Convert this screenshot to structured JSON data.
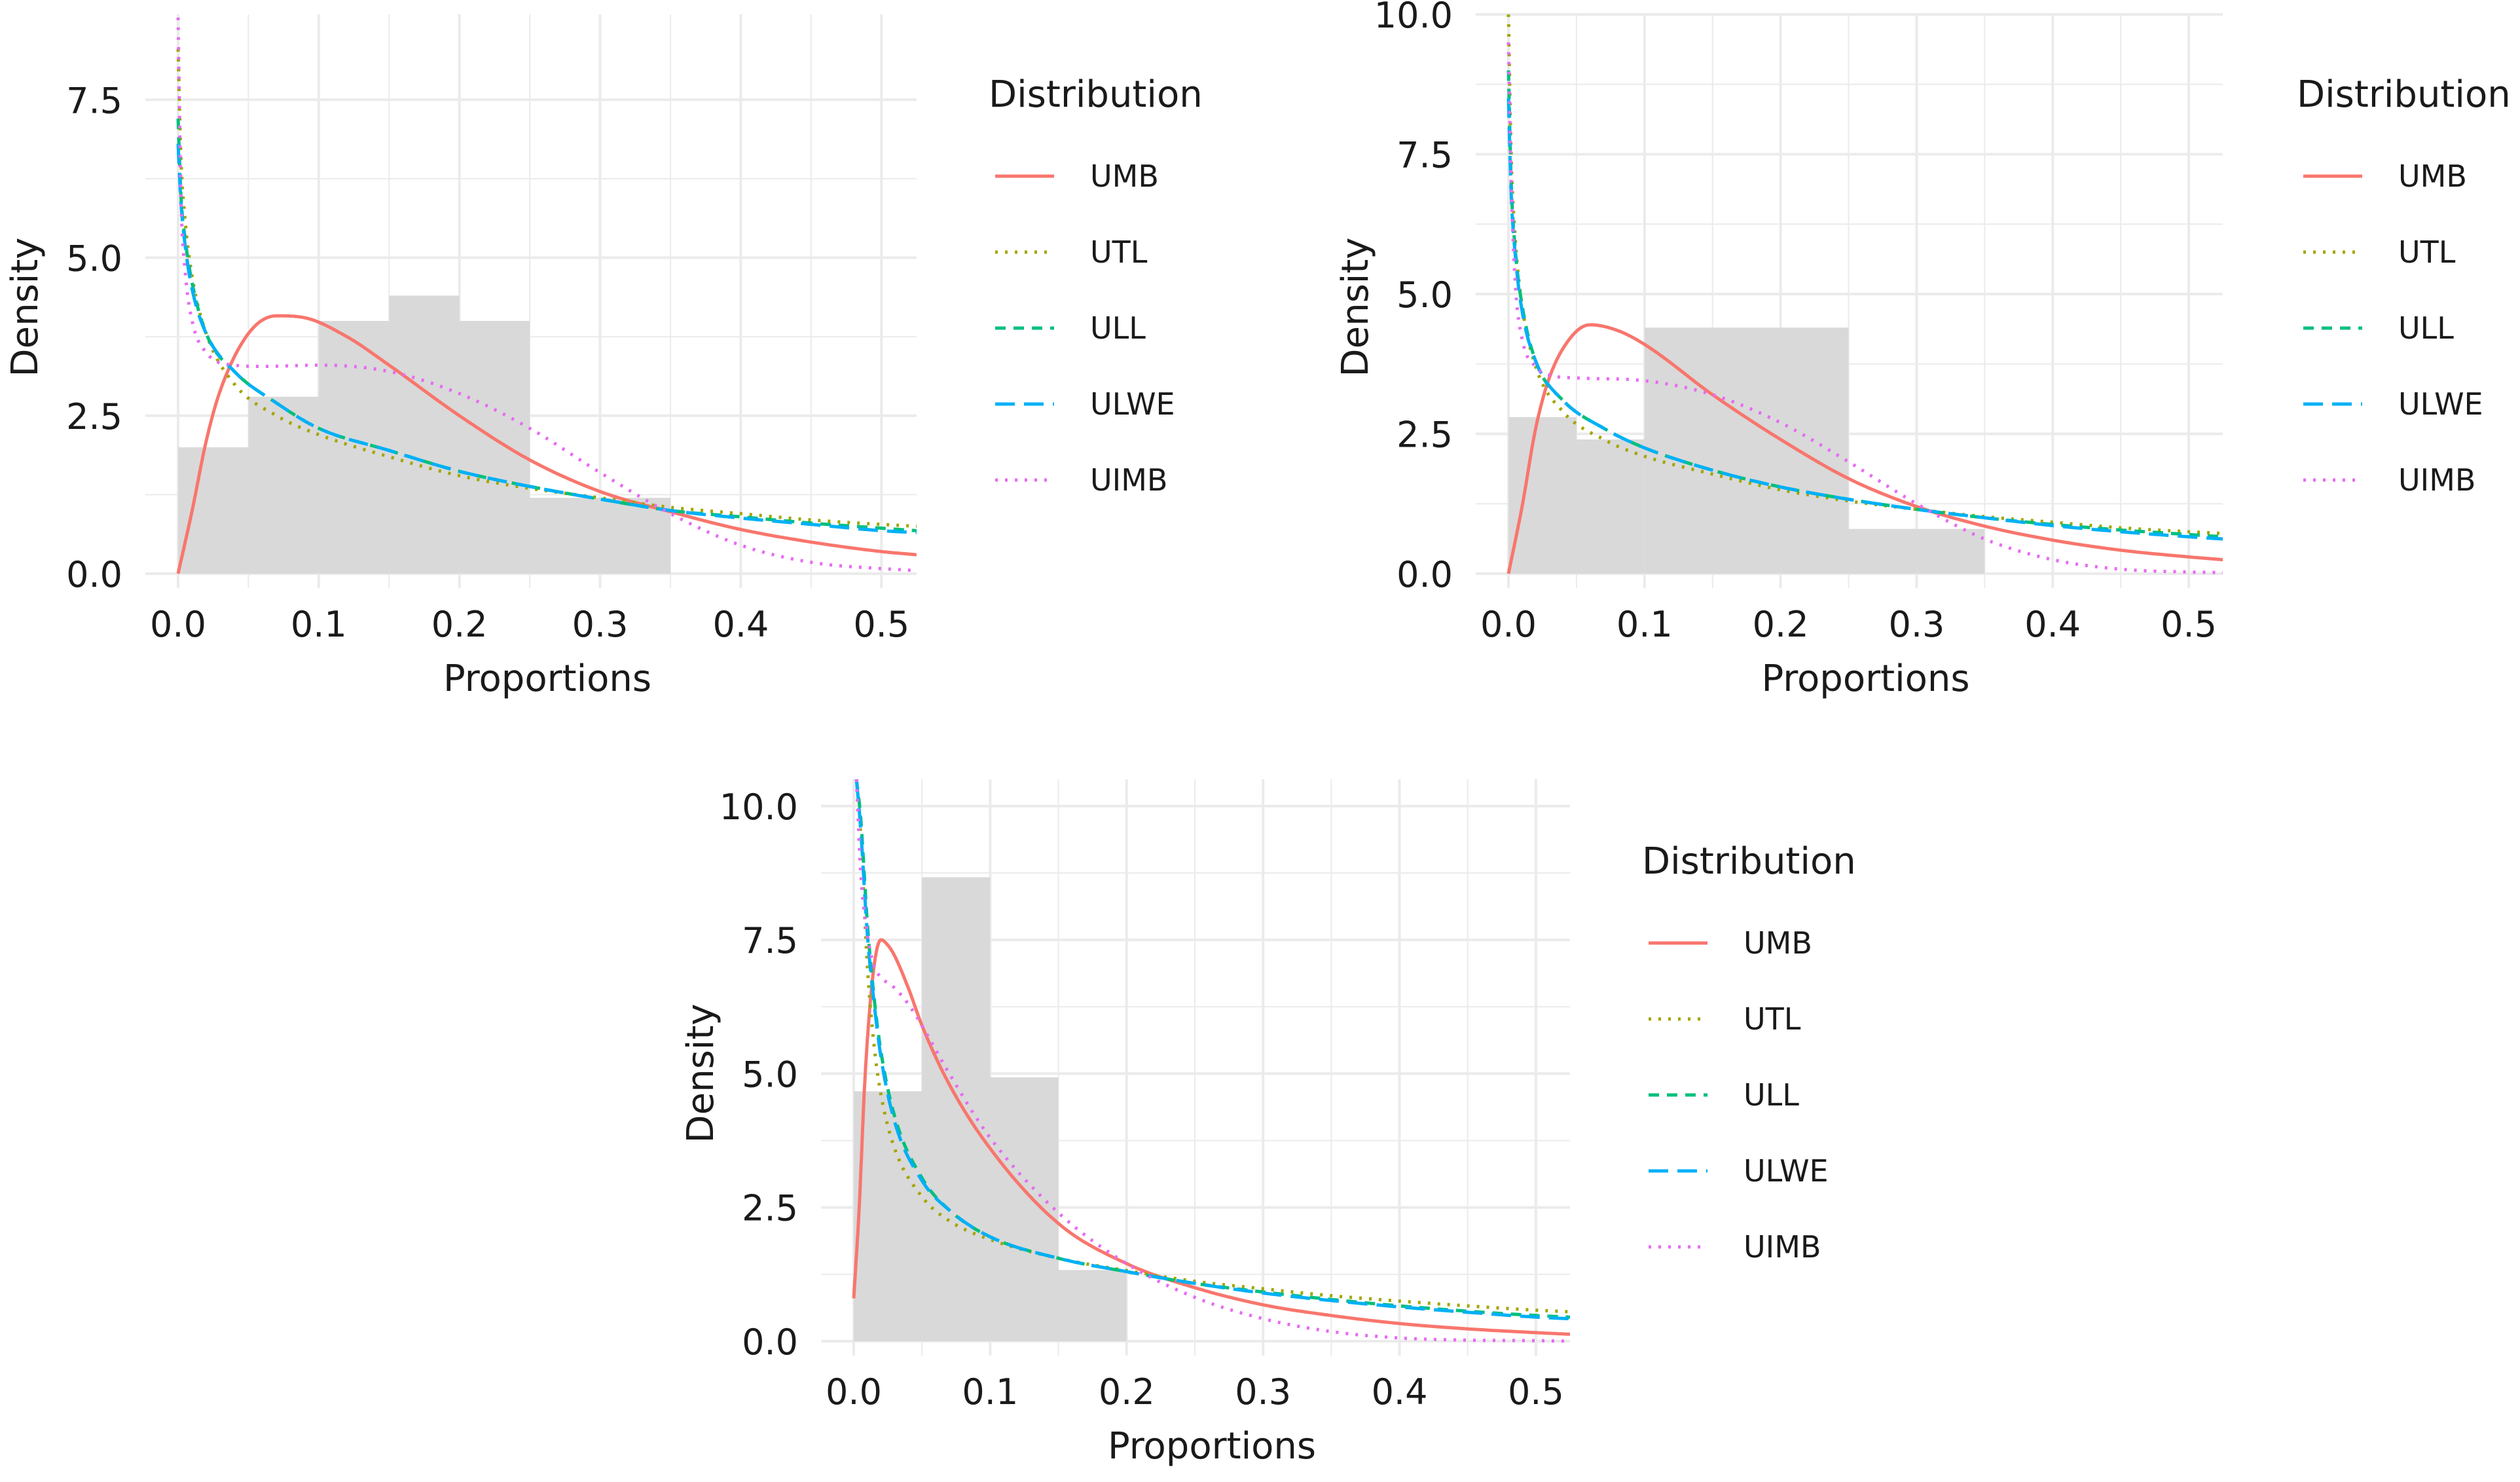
{
  "chart_data": [
    {
      "type": "histogram-density",
      "xlabel": "Proportions",
      "ylabel": "Density",
      "xlim": [
        0.0,
        0.525
      ],
      "ylim": [
        0.0,
        8.85
      ],
      "xticks": [
        0.0,
        0.1,
        0.2,
        0.3,
        0.4,
        0.5
      ],
      "xtick_labels": [
        "0.0",
        "0.1",
        "0.2",
        "0.3",
        "0.4",
        "0.5"
      ],
      "yticks": [
        0.0,
        2.5,
        5.0,
        7.5
      ],
      "ytick_labels": [
        "0.0",
        "2.5",
        "5.0",
        "7.5"
      ],
      "histogram": {
        "bin_width": 0.05,
        "bin_starts": [
          0.0,
          0.05,
          0.1,
          0.15,
          0.2,
          0.25,
          0.3
        ],
        "values": [
          2.0,
          2.8,
          4.0,
          4.4,
          4.0,
          1.2,
          1.2
        ],
        "color": "#d9d9d9"
      },
      "legend_title": "Distribution",
      "series": [
        {
          "name": "UMB",
          "color": "#F8766D",
          "dash": "solid",
          "x": [
            0.0,
            0.01,
            0.02,
            0.03,
            0.05,
            0.07,
            0.09,
            0.12,
            0.15,
            0.2,
            0.25,
            0.3,
            0.35,
            0.4,
            0.45,
            0.5,
            0.525
          ],
          "y": [
            0.0,
            1.0,
            2.1,
            2.9,
            3.8,
            4.08,
            4.05,
            3.75,
            3.3,
            2.5,
            1.8,
            1.3,
            0.98,
            0.7,
            0.5,
            0.35,
            0.3
          ]
        },
        {
          "name": "UTL",
          "color": "#A3A500",
          "dash": "dotted",
          "x": [
            0.0,
            0.002,
            0.005,
            0.01,
            0.02,
            0.04,
            0.07,
            0.1,
            0.15,
            0.2,
            0.25,
            0.3,
            0.35,
            0.4,
            0.45,
            0.5,
            0.525
          ],
          "y": [
            8.3,
            6.6,
            5.6,
            4.7,
            3.8,
            3.0,
            2.5,
            2.2,
            1.85,
            1.55,
            1.35,
            1.2,
            1.05,
            0.95,
            0.85,
            0.78,
            0.75
          ]
        },
        {
          "name": "ULL",
          "color": "#00BF7D",
          "dash": "dashed",
          "x": [
            0.0,
            0.002,
            0.005,
            0.01,
            0.02,
            0.04,
            0.07,
            0.1,
            0.15,
            0.2,
            0.25,
            0.3,
            0.35,
            0.4,
            0.45,
            0.5,
            0.525
          ],
          "y": [
            7.2,
            6.0,
            5.3,
            4.6,
            3.8,
            3.2,
            2.7,
            2.3,
            1.95,
            1.62,
            1.38,
            1.18,
            1.0,
            0.9,
            0.8,
            0.72,
            0.68
          ]
        },
        {
          "name": "ULWE",
          "color": "#00B0F6",
          "dash": "longdash",
          "x": [
            0.0,
            0.002,
            0.005,
            0.01,
            0.02,
            0.04,
            0.07,
            0.1,
            0.15,
            0.2,
            0.25,
            0.3,
            0.35,
            0.4,
            0.45,
            0.5,
            0.525
          ],
          "y": [
            6.8,
            5.9,
            5.2,
            4.5,
            3.8,
            3.2,
            2.7,
            2.3,
            1.95,
            1.62,
            1.38,
            1.18,
            1.0,
            0.88,
            0.78,
            0.68,
            0.65
          ]
        },
        {
          "name": "UIMB",
          "color": "#E76BF3",
          "dash": "dotted",
          "x": [
            0.0,
            0.002,
            0.005,
            0.01,
            0.02,
            0.04,
            0.06,
            0.1,
            0.15,
            0.2,
            0.25,
            0.3,
            0.35,
            0.4,
            0.45,
            0.5,
            0.525
          ],
          "y": [
            8.8,
            6.0,
            4.8,
            4.0,
            3.5,
            3.3,
            3.28,
            3.3,
            3.2,
            2.85,
            2.3,
            1.6,
            0.95,
            0.45,
            0.18,
            0.08,
            0.05
          ]
        }
      ]
    },
    {
      "type": "histogram-density",
      "xlabel": "Proportions",
      "ylabel": "Density",
      "xlim": [
        0.0,
        0.525
      ],
      "ylim": [
        0.0,
        10.0
      ],
      "xticks": [
        0.0,
        0.1,
        0.2,
        0.3,
        0.4,
        0.5
      ],
      "xtick_labels": [
        "0.0",
        "0.1",
        "0.2",
        "0.3",
        "0.4",
        "0.5"
      ],
      "yticks": [
        0.0,
        2.5,
        5.0,
        7.5,
        10.0
      ],
      "ytick_labels": [
        "0.0",
        "2.5",
        "5.0",
        "7.5",
        "10.0"
      ],
      "histogram": {
        "bin_width": 0.05,
        "bin_starts": [
          0.0,
          0.05,
          0.1,
          0.15,
          0.2,
          0.25,
          0.3
        ],
        "values": [
          2.8,
          2.4,
          4.4,
          4.4,
          4.4,
          0.8,
          0.8
        ],
        "color": "#d9d9d9"
      },
      "legend_title": "Distribution",
      "series": [
        {
          "name": "UMB",
          "color": "#F8766D",
          "dash": "solid",
          "x": [
            0.0,
            0.01,
            0.02,
            0.03,
            0.045,
            0.06,
            0.08,
            0.1,
            0.15,
            0.2,
            0.25,
            0.3,
            0.35,
            0.4,
            0.45,
            0.5,
            0.525
          ],
          "y": [
            0.0,
            1.2,
            2.6,
            3.5,
            4.2,
            4.45,
            4.35,
            4.1,
            3.2,
            2.4,
            1.7,
            1.2,
            0.85,
            0.6,
            0.42,
            0.3,
            0.25
          ]
        },
        {
          "name": "UTL",
          "color": "#A3A500",
          "dash": "dotted",
          "x": [
            0.0,
            0.002,
            0.005,
            0.01,
            0.02,
            0.04,
            0.07,
            0.1,
            0.15,
            0.2,
            0.25,
            0.3,
            0.35,
            0.4,
            0.45,
            0.5,
            0.525
          ],
          "y": [
            10.0,
            7.5,
            6.0,
            4.8,
            3.7,
            2.9,
            2.4,
            2.1,
            1.78,
            1.5,
            1.3,
            1.15,
            1.02,
            0.92,
            0.82,
            0.75,
            0.72
          ]
        },
        {
          "name": "ULL",
          "color": "#00BF7D",
          "dash": "dashed",
          "x": [
            0.0,
            0.002,
            0.005,
            0.01,
            0.02,
            0.04,
            0.07,
            0.1,
            0.15,
            0.2,
            0.25,
            0.3,
            0.35,
            0.4,
            0.45,
            0.5,
            0.525
          ],
          "y": [
            9.0,
            7.0,
            5.8,
            4.8,
            3.8,
            3.1,
            2.6,
            2.25,
            1.85,
            1.55,
            1.33,
            1.15,
            1.0,
            0.88,
            0.78,
            0.7,
            0.66
          ]
        },
        {
          "name": "ULWE",
          "color": "#00B0F6",
          "dash": "longdash",
          "x": [
            0.0,
            0.002,
            0.005,
            0.01,
            0.02,
            0.04,
            0.07,
            0.1,
            0.15,
            0.2,
            0.25,
            0.3,
            0.35,
            0.4,
            0.45,
            0.5,
            0.525
          ],
          "y": [
            8.5,
            6.8,
            5.7,
            4.7,
            3.8,
            3.1,
            2.6,
            2.25,
            1.85,
            1.55,
            1.33,
            1.15,
            1.0,
            0.86,
            0.75,
            0.66,
            0.62
          ]
        },
        {
          "name": "UIMB",
          "color": "#E76BF3",
          "dash": "dotted",
          "x": [
            0.0,
            0.002,
            0.005,
            0.01,
            0.02,
            0.03,
            0.05,
            0.1,
            0.15,
            0.2,
            0.25,
            0.3,
            0.35,
            0.4,
            0.45,
            0.5,
            0.525
          ],
          "y": [
            9.5,
            7.0,
            5.2,
            4.2,
            3.7,
            3.55,
            3.5,
            3.45,
            3.2,
            2.7,
            2.0,
            1.25,
            0.62,
            0.25,
            0.08,
            0.03,
            0.02
          ]
        }
      ]
    },
    {
      "type": "histogram-density",
      "xlabel": "Proportions",
      "ylabel": "Density",
      "xlim": [
        0.0,
        0.525
      ],
      "ylim": [
        0.0,
        10.5
      ],
      "xticks": [
        0.0,
        0.1,
        0.2,
        0.3,
        0.4,
        0.5
      ],
      "xtick_labels": [
        "0.0",
        "0.1",
        "0.2",
        "0.3",
        "0.4",
        "0.5"
      ],
      "yticks": [
        0.0,
        2.5,
        5.0,
        7.5,
        10.0
      ],
      "ytick_labels": [
        "0.0",
        "2.5",
        "5.0",
        "7.5",
        "10.0"
      ],
      "histogram": {
        "bin_width": 0.05,
        "bin_starts": [
          0.0,
          0.05,
          0.1,
          0.15
        ],
        "values": [
          4.67,
          8.67,
          4.93,
          1.33
        ],
        "color": "#d9d9d9"
      },
      "legend_title": "Distribution",
      "series": [
        {
          "name": "UMB",
          "color": "#F8766D",
          "dash": "solid",
          "x": [
            0.0,
            0.004,
            0.008,
            0.012,
            0.016,
            0.02,
            0.025,
            0.03,
            0.04,
            0.05,
            0.07,
            0.1,
            0.15,
            0.2,
            0.25,
            0.3,
            0.35,
            0.4,
            0.45,
            0.5,
            0.525
          ],
          "y": [
            0.8,
            2.5,
            4.8,
            6.3,
            7.2,
            7.5,
            7.4,
            7.2,
            6.6,
            5.9,
            4.8,
            3.6,
            2.2,
            1.45,
            1.0,
            0.68,
            0.48,
            0.33,
            0.23,
            0.16,
            0.13
          ]
        },
        {
          "name": "UTL",
          "color": "#A3A500",
          "dash": "dotted",
          "x": [
            0.002,
            0.005,
            0.01,
            0.015,
            0.02,
            0.03,
            0.05,
            0.07,
            0.1,
            0.15,
            0.2,
            0.25,
            0.3,
            0.35,
            0.4,
            0.45,
            0.5,
            0.525
          ],
          "y": [
            10.5,
            9.5,
            7.0,
            5.5,
            4.6,
            3.6,
            2.7,
            2.25,
            1.9,
            1.55,
            1.32,
            1.12,
            0.98,
            0.85,
            0.75,
            0.66,
            0.58,
            0.55
          ]
        },
        {
          "name": "ULL",
          "color": "#00BF7D",
          "dash": "dashed",
          "x": [
            0.002,
            0.005,
            0.01,
            0.015,
            0.02,
            0.03,
            0.05,
            0.07,
            0.1,
            0.15,
            0.2,
            0.25,
            0.3,
            0.35,
            0.4,
            0.45,
            0.5,
            0.525
          ],
          "y": [
            10.5,
            9.8,
            7.8,
            6.4,
            5.4,
            4.2,
            3.05,
            2.45,
            1.95,
            1.55,
            1.3,
            1.08,
            0.92,
            0.78,
            0.66,
            0.56,
            0.48,
            0.45
          ]
        },
        {
          "name": "ULWE",
          "color": "#00B0F6",
          "dash": "longdash",
          "x": [
            0.002,
            0.005,
            0.01,
            0.015,
            0.02,
            0.03,
            0.05,
            0.07,
            0.1,
            0.15,
            0.2,
            0.25,
            0.3,
            0.35,
            0.4,
            0.45,
            0.5,
            0.525
          ],
          "y": [
            10.5,
            9.6,
            7.6,
            6.3,
            5.3,
            4.1,
            3.0,
            2.45,
            1.95,
            1.55,
            1.3,
            1.08,
            0.9,
            0.76,
            0.64,
            0.54,
            0.45,
            0.42
          ]
        },
        {
          "name": "UIMB",
          "color": "#E76BF3",
          "dash": "dotted",
          "x": [
            0.002,
            0.005,
            0.01,
            0.015,
            0.02,
            0.03,
            0.04,
            0.05,
            0.07,
            0.1,
            0.15,
            0.2,
            0.25,
            0.3,
            0.35,
            0.4,
            0.45,
            0.5,
            0.525
          ],
          "y": [
            10.5,
            8.8,
            7.6,
            7.0,
            6.8,
            6.6,
            6.3,
            5.9,
            5.0,
            3.8,
            2.4,
            1.45,
            0.82,
            0.42,
            0.18,
            0.06,
            0.02,
            0.01,
            0.0
          ]
        }
      ]
    }
  ]
}
